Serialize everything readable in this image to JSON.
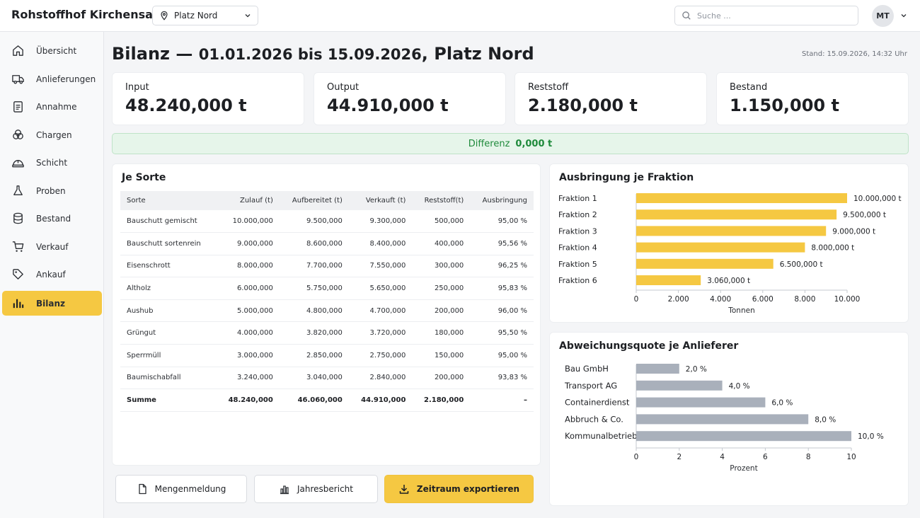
{
  "header": {
    "app_title": "Rohstoffhof Kirchensand",
    "location": "Platz Nord",
    "search_placeholder": "Suche ...",
    "user_initials": "MT"
  },
  "sidebar": {
    "items": [
      {
        "label": "Übersicht",
        "icon": "home-icon"
      },
      {
        "label": "Anlieferungen",
        "icon": "truck-icon"
      },
      {
        "label": "Annahme",
        "icon": "clipboard-icon"
      },
      {
        "label": "Chargen",
        "icon": "stack-icon"
      },
      {
        "label": "Schicht",
        "icon": "hardhat-icon"
      },
      {
        "label": "Proben",
        "icon": "flask-icon"
      },
      {
        "label": "Bestand",
        "icon": "database-icon"
      },
      {
        "label": "Verkauf",
        "icon": "cart-icon"
      },
      {
        "label": "Ankauf",
        "icon": "tag-icon"
      },
      {
        "label": "Bilanz",
        "icon": "bar-chart-icon",
        "active": true
      }
    ]
  },
  "page": {
    "title_main": "Bilanz — ",
    "title_range": "01.01.2026 bis 15.09.2026",
    "title_place": ", Platz Nord",
    "stand": "Stand: 15.09.2026, 14:32 Uhr"
  },
  "kpis": [
    {
      "label": "Input",
      "value": "48.240,000 t"
    },
    {
      "label": "Output",
      "value": "44.910,000 t"
    },
    {
      "label": "Reststoff",
      "value": "2.180,000 t"
    },
    {
      "label": "Bestand",
      "value": "1.150,000 t"
    }
  ],
  "differenz": {
    "label": "Differenz",
    "value": "0,000 t"
  },
  "sorte_table": {
    "title": "Je Sorte",
    "columns": [
      "Sorte",
      "Zulauf (t)",
      "Aufbereitet (t)",
      "Verkauft (t)",
      "Reststoff(t)",
      "Ausbringung"
    ],
    "rows": [
      [
        "Bauschutt gemischt",
        "10.000,000",
        "9.500,000",
        "9.300,000",
        "500,000",
        "95,00 %"
      ],
      [
        "Bauschutt sortenrein",
        "9.000,000",
        "8.600,000",
        "8.400,000",
        "400,000",
        "95,56 %"
      ],
      [
        "Eisenschrott",
        "8.000,000",
        "7.700,000",
        "7.550,000",
        "300,000",
        "96,25 %"
      ],
      [
        "Altholz",
        "6.000,000",
        "5.750,000",
        "5.650,000",
        "250,000",
        "95,83 %"
      ],
      [
        "Aushub",
        "5.000,000",
        "4.800,000",
        "4.700,000",
        "200,000",
        "96,00 %"
      ],
      [
        "Grüngut",
        "4.000,000",
        "3.820,000",
        "3.720,000",
        "180,000",
        "95,50 %"
      ],
      [
        "Sperrmüll",
        "3.000,000",
        "2.850,000",
        "2.750,000",
        "150,000",
        "95,00 %"
      ],
      [
        "Baumischabfall",
        "3.240,000",
        "3.040,000",
        "2.840,000",
        "200,000",
        "93,83 %"
      ]
    ],
    "sum": [
      "Summe",
      "48.240,000",
      "46.060,000",
      "44.910,000",
      "2.180,000",
      "–"
    ]
  },
  "buttons": {
    "mengenmeldung": "Mengenmeldung",
    "jahresbericht": "Jahresbericht",
    "export": "Zeitraum exportieren"
  },
  "chart_data": [
    {
      "type": "bar",
      "orientation": "horizontal",
      "title": "Ausbringung je Fraktion",
      "categories": [
        "Fraktion 1",
        "Fraktion 2",
        "Fraktion 3",
        "Fraktion 4",
        "Fraktion 5",
        "Fraktion 6"
      ],
      "values": [
        10000,
        9500,
        9000,
        8000,
        6500,
        3060
      ],
      "data_labels": [
        "10.000,000 t",
        "9.500,000 t",
        "9.000,000 t",
        "8.000,000 t",
        "6.500,000 t",
        "3.060,000 t"
      ],
      "xlim": [
        0,
        10000
      ],
      "ticks": [
        0,
        2000,
        4000,
        6000,
        8000,
        10000
      ],
      "tick_labels": [
        "0",
        "2.000",
        "4.000",
        "6.000",
        "8.000",
        "10.000"
      ],
      "xlabel": "Tonnen",
      "color": "#f5c842"
    },
    {
      "type": "bar",
      "orientation": "horizontal",
      "title": "Abweichungsquote je Anlieferer",
      "categories": [
        "Bau GmbH",
        "Transport AG",
        "Containerdienst",
        "Abbruch & Co.",
        "Kommunalbetrieb"
      ],
      "values": [
        2,
        4,
        6,
        8,
        10
      ],
      "data_labels": [
        "2,0 %",
        "4,0 %",
        "6,0 %",
        "8,0 %",
        "10,0 %"
      ],
      "xlim": [
        0,
        10
      ],
      "ticks": [
        0,
        2,
        4,
        6,
        8,
        10
      ],
      "tick_labels": [
        "0",
        "2",
        "4",
        "6",
        "8",
        "10"
      ],
      "xlabel": "Prozent",
      "color": "#a9b0bb"
    }
  ]
}
